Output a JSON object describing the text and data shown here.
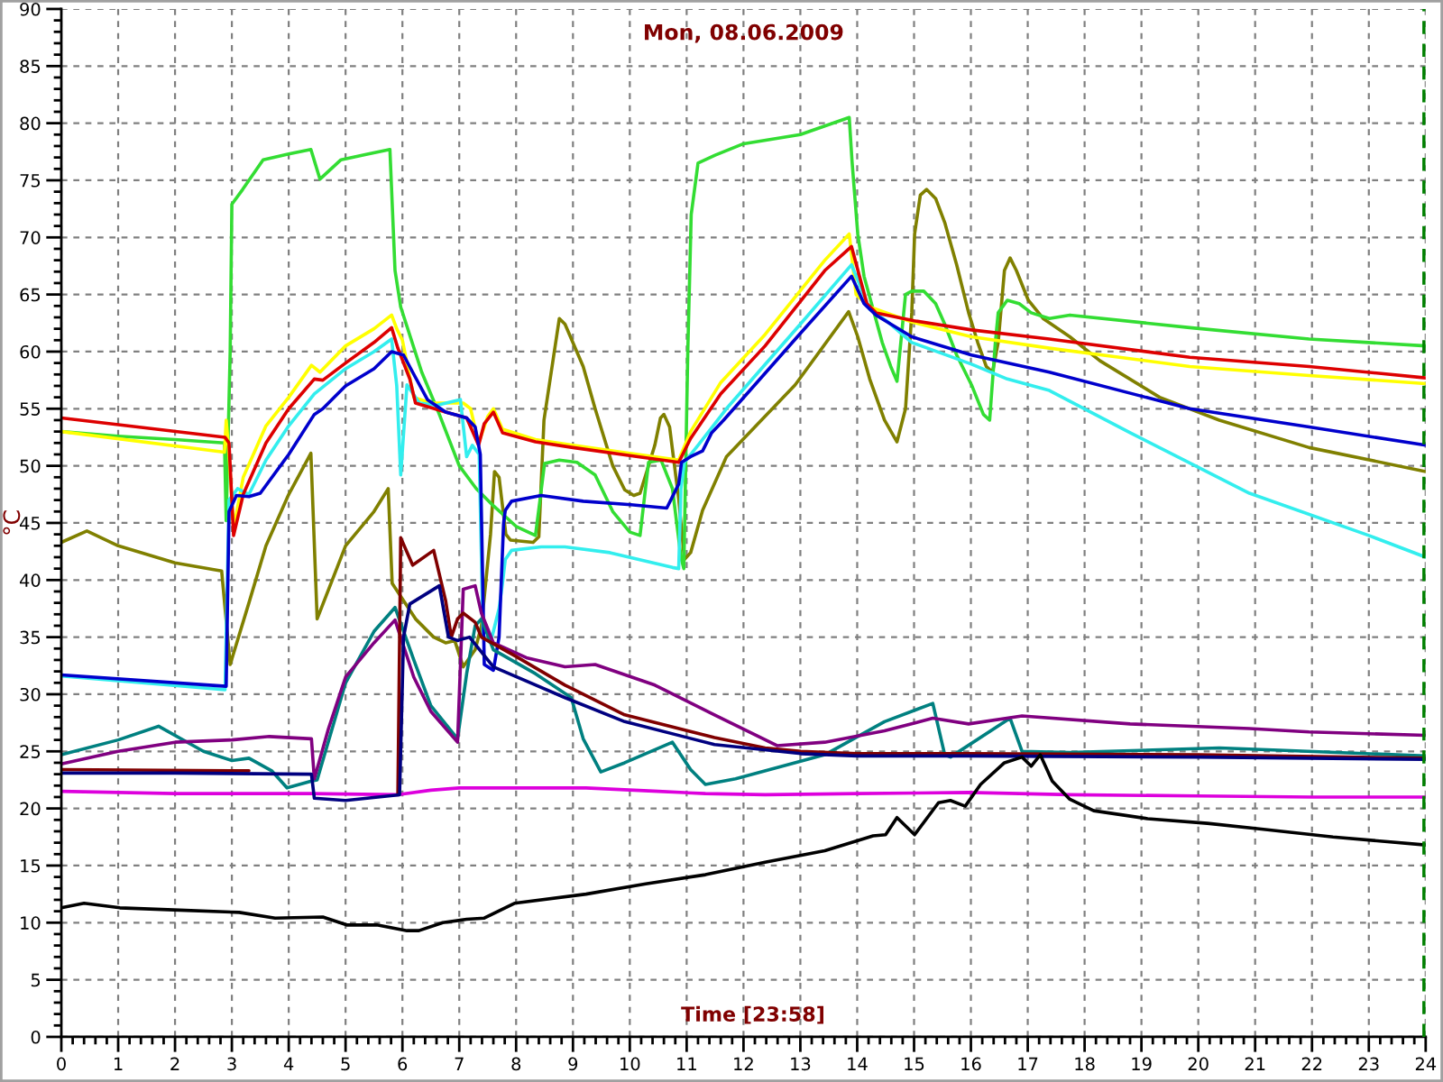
{
  "chart_data": {
    "type": "line",
    "title": "Mon, 08.06.2009",
    "xlabel": "Time [23:58]",
    "ylabel": "°C",
    "xlim": [
      0,
      24
    ],
    "xticks": [
      0,
      1,
      2,
      3,
      4,
      5,
      6,
      7,
      8,
      9,
      10,
      11,
      12,
      13,
      14,
      15,
      16,
      17,
      18,
      19,
      20,
      21,
      22,
      23,
      24
    ],
    "ylim": [
      0,
      90
    ],
    "yticks": [
      0,
      5,
      10,
      15,
      20,
      25,
      30,
      35,
      40,
      45,
      50,
      55,
      60,
      65,
      70,
      75,
      80,
      85,
      90
    ],
    "grid": true,
    "ref_lines": [
      {
        "axis": "x",
        "value": 23.97,
        "color": "#008000",
        "line_style": "dashed"
      }
    ],
    "series": [
      {
        "color": "#808000",
        "x": [
          0,
          0.45,
          1,
          2,
          2.82,
          2.97,
          3.3,
          3.6,
          4.0,
          4.39,
          4.5,
          5.0,
          5.5,
          5.75,
          5.82,
          6.23,
          6.55,
          6.76,
          6.92,
          7.07,
          7.28,
          7.39,
          7.55,
          7.62,
          7.7,
          7.82,
          7.9,
          8.3,
          8.4,
          8.49,
          8.76,
          8.86,
          9.18,
          9.39,
          9.7,
          9.91,
          10.07,
          10.18,
          10.28,
          10.44,
          10.54,
          10.6,
          10.7,
          10.86,
          10.96,
          11.07,
          11.28,
          11.7,
          12.91,
          13.85,
          14.01,
          14.22,
          14.48,
          14.7,
          14.85,
          14.96,
          15.01,
          15.11,
          15.22,
          15.38,
          15.54,
          15.75,
          15.96,
          16.12,
          16.27,
          16.38,
          16.48,
          16.59,
          16.69,
          16.8,
          17.01,
          17.27,
          17.74,
          18.27,
          19.32,
          20.37,
          21.95,
          24
        ],
        "values": [
          43.3,
          44.3,
          43,
          41.5,
          40.8,
          32.6,
          38,
          43,
          47.5,
          51.1,
          36.6,
          43,
          46,
          48,
          39.7,
          36.6,
          35,
          34.5,
          34.7,
          32.4,
          33.9,
          36,
          44,
          49.5,
          49,
          44,
          43.5,
          43.3,
          43.8,
          54,
          62.9,
          62.4,
          58.7,
          55,
          50,
          47.9,
          47.4,
          47.6,
          49.2,
          51.8,
          54.2,
          54.5,
          53.4,
          47.1,
          41.8,
          42.4,
          46.1,
          50.8,
          57.1,
          63.5,
          61.3,
          57.6,
          54,
          52.1,
          55,
          63.4,
          70.3,
          73.7,
          74.2,
          73.4,
          71.3,
          67.6,
          63.4,
          60.8,
          58.7,
          58.2,
          60.8,
          67.1,
          68.2,
          67.1,
          64.5,
          62.9,
          61.3,
          59.2,
          56,
          54,
          51.6,
          49.5
        ]
      },
      {
        "color": "#33dd33",
        "x": [
          0,
          1,
          2,
          2.87,
          2.9,
          2.97,
          3.0,
          3.19,
          3.55,
          4.0,
          4.39,
          4.55,
          4.92,
          5.4,
          5.78,
          5.87,
          5.97,
          6.34,
          6.65,
          7.0,
          7.3,
          7.6,
          8.0,
          8.34,
          8.42,
          8.5,
          8.76,
          9.07,
          9.39,
          9.7,
          10.0,
          10.18,
          10.28,
          10.33,
          10.55,
          10.75,
          10.9,
          10.95,
          11.02,
          11.08,
          11.2,
          11.5,
          12,
          13,
          13.86,
          13.91,
          14.01,
          14.12,
          14.44,
          14.59,
          14.7,
          14.85,
          14.96,
          15.17,
          15.38,
          15.54,
          15.75,
          16.01,
          16.22,
          16.33,
          16.43,
          16.48,
          16.64,
          16.85,
          17.06,
          17.38,
          17.74,
          19.85,
          21.95,
          24
        ],
        "values": [
          53,
          52.6,
          52.3,
          52,
          45.2,
          60,
          72.9,
          74.2,
          76.8,
          77.3,
          77.7,
          75.1,
          76.8,
          77.3,
          77.7,
          67.1,
          63.9,
          58.2,
          54.5,
          50,
          48,
          46.5,
          44.7,
          43.9,
          47,
          50.2,
          50.5,
          50.3,
          49.2,
          46,
          44.2,
          43.9,
          48.2,
          50.3,
          50.5,
          48,
          42,
          41,
          60,
          72,
          76.5,
          77.2,
          78.2,
          79,
          80.5,
          76.6,
          70.3,
          66.6,
          60.8,
          58.7,
          57.4,
          65,
          65.3,
          65.3,
          64.2,
          62.4,
          59.7,
          57.1,
          54.5,
          54,
          60.8,
          63.4,
          64.5,
          64.2,
          63.4,
          62.9,
          63.2,
          62.1,
          61.1,
          60.5
        ]
      },
      {
        "color": "#ffff00",
        "x": [
          0,
          2.87,
          2.9,
          2.95,
          3.03,
          3.2,
          3.6,
          4.0,
          4.4,
          4.55,
          5.0,
          5.5,
          5.81,
          5.9,
          6.0,
          6.2,
          6.5,
          7.07,
          7.2,
          7.34,
          7.5,
          7.6,
          7.76,
          8.34,
          9,
          10,
          10.86,
          11.07,
          11.6,
          12.38,
          13.43,
          13.86,
          13.98,
          14.22,
          14.96,
          16.01,
          17.38,
          19.85,
          21.95,
          24
        ],
        "values": [
          53,
          51.2,
          54,
          51,
          44.5,
          49,
          53.5,
          56,
          58.8,
          58.2,
          60.5,
          62,
          63.2,
          62,
          61,
          56,
          55.5,
          55.5,
          55,
          52,
          54.3,
          55,
          53.2,
          52.3,
          51.8,
          51.1,
          50.5,
          53,
          57.3,
          61.5,
          68,
          70.3,
          65,
          63.9,
          62.6,
          61.3,
          60.3,
          58.7,
          57.9,
          57.2
        ]
      },
      {
        "color": "#33eeee",
        "x": [
          0,
          2.88,
          2.95,
          3.1,
          3.3,
          3.6,
          4.0,
          4.45,
          5.0,
          5.5,
          5.81,
          5.9,
          5.97,
          6.08,
          6.3,
          6.6,
          7.02,
          7.13,
          7.23,
          7.35,
          7.42,
          7.55,
          7.7,
          7.76,
          7.81,
          7.92,
          8.44,
          8.86,
          9.65,
          10.75,
          10.86,
          10.9,
          10.96,
          11.2,
          11.7,
          13,
          13.9,
          14.22,
          14.54,
          14.96,
          16.01,
          16.64,
          17.38,
          18.8,
          20.9,
          23,
          24
        ],
        "values": [
          31.6,
          30.4,
          47,
          48,
          47.5,
          50.5,
          53.5,
          56.3,
          58.5,
          60,
          61.1,
          57,
          49.2,
          57.1,
          55.5,
          55.3,
          55.8,
          50.8,
          51.8,
          51,
          35,
          34.5,
          37.5,
          39.7,
          41.8,
          42.6,
          42.9,
          42.9,
          42.4,
          41.1,
          41,
          48,
          50.3,
          51.8,
          55,
          62.4,
          67.6,
          63.7,
          62.6,
          60.8,
          58.9,
          57.6,
          56.6,
          52.9,
          47.6,
          43.9,
          42
        ]
      },
      {
        "color": "#dd0000",
        "x": [
          0,
          2.88,
          2.95,
          3.03,
          3.2,
          3.6,
          4.0,
          4.45,
          4.6,
          5.0,
          5.5,
          5.81,
          5.92,
          6.13,
          6.23,
          6.76,
          7.13,
          7.34,
          7.44,
          7.6,
          7.76,
          8.34,
          9,
          10,
          10.86,
          11.07,
          11.6,
          12.38,
          13.43,
          13.9,
          14.17,
          14.33,
          15,
          16.01,
          17.38,
          19.85,
          21.95,
          24
        ],
        "values": [
          54.2,
          52.5,
          52,
          43.9,
          47.5,
          52,
          55,
          57.6,
          57.5,
          59,
          60.8,
          62.1,
          60.3,
          57.6,
          55.5,
          54.7,
          54.2,
          51.8,
          53.7,
          54.7,
          52.9,
          52.1,
          51.6,
          50.9,
          50.3,
          52.4,
          56.3,
          60.5,
          67.1,
          69.2,
          64.2,
          63.4,
          62.7,
          61.9,
          61.1,
          59.5,
          58.7,
          57.7
        ]
      },
      {
        "color": "#0000cc",
        "x": [
          0,
          2.9,
          2.95,
          3.08,
          3.3,
          3.5,
          4.0,
          4.45,
          4.6,
          5.0,
          5.5,
          5.81,
          6.02,
          6.18,
          6.44,
          6.76,
          7.13,
          7.28,
          7.37,
          7.44,
          7.6,
          7.7,
          7.78,
          7.81,
          7.92,
          8.44,
          9.18,
          10.02,
          10.65,
          10.86,
          10.91,
          11.07,
          11.28,
          11.44,
          11.65,
          13,
          13.9,
          14.12,
          14.33,
          14.96,
          16.01,
          17.38,
          19.85,
          21.95,
          24
        ],
        "values": [
          31.7,
          30.7,
          46,
          47.4,
          47.3,
          47.6,
          51,
          54.5,
          55,
          57,
          58.5,
          60,
          59.7,
          58.2,
          55.8,
          54.7,
          54.2,
          53.4,
          51,
          32.6,
          32.1,
          35,
          45,
          46.1,
          46.9,
          47.4,
          46.9,
          46.6,
          46.3,
          48.4,
          50.3,
          50.8,
          51.3,
          52.9,
          54,
          61.6,
          66.6,
          64.2,
          63.2,
          61.3,
          59.7,
          58.2,
          55,
          53.4,
          51.8
        ]
      },
      {
        "color": "#dd00dd",
        "x": [
          0,
          2,
          4.4,
          5.9,
          6.5,
          7.0,
          9.23,
          10.5,
          11.33,
          12.38,
          14,
          15.96,
          17.74,
          20,
          22,
          24
        ],
        "values": [
          21.5,
          21.3,
          21.3,
          21.2,
          21.6,
          21.8,
          21.8,
          21.5,
          21.3,
          21.2,
          21.3,
          21.4,
          21.2,
          21.1,
          21,
          21
        ]
      },
      {
        "color": "#008080",
        "x": [
          0,
          1,
          1.71,
          2.5,
          3.0,
          3.3,
          3.7,
          3.97,
          4.4,
          4.5,
          5.0,
          5.5,
          5.87,
          6.2,
          6.5,
          6.97,
          7.13,
          7.28,
          7.39,
          7.6,
          8.34,
          8.97,
          9.18,
          9.49,
          9.91,
          10.75,
          11.07,
          11.33,
          11.86,
          13.43,
          14.48,
          15.33,
          15.54,
          15.64,
          16.69,
          16.9,
          17.74,
          20.37,
          21.42,
          24
        ],
        "values": [
          24.7,
          26,
          27.2,
          25,
          24.2,
          24.4,
          23.3,
          21.8,
          22.4,
          22.5,
          31,
          35.5,
          37.6,
          33,
          29,
          26.1,
          31.8,
          36,
          36.6,
          33.9,
          31.8,
          29.7,
          26.1,
          23.2,
          24,
          25.8,
          23.4,
          22.1,
          22.6,
          24.7,
          27.6,
          29.2,
          24.7,
          24.5,
          27.9,
          25,
          24.9,
          25.3,
          25.1,
          24.6
        ]
      },
      {
        "color": "#800080",
        "x": [
          0,
          1,
          2,
          3,
          3.66,
          4.4,
          4.45,
          4.7,
          5.0,
          5.5,
          5.87,
          6.2,
          6.5,
          6.97,
          7.07,
          7.28,
          7.39,
          7.6,
          8.18,
          8.86,
          9.39,
          10.44,
          11.49,
          12.59,
          13.43,
          14.48,
          15.33,
          15.96,
          16.9,
          18.8,
          20.9,
          21.95,
          24
        ],
        "values": [
          23.9,
          25,
          25.8,
          26,
          26.3,
          26.1,
          22.6,
          27,
          31.5,
          34.5,
          36.5,
          31.5,
          28.5,
          25.8,
          39.2,
          39.5,
          37.1,
          34.5,
          33.2,
          32.4,
          32.6,
          30.8,
          28.2,
          25.5,
          25.8,
          26.8,
          27.9,
          27.4,
          28.1,
          27.4,
          27,
          26.7,
          26.4
        ]
      },
      {
        "color": "#800000",
        "x": [
          0,
          3.3,
          3.35,
          5.92,
          5.97,
          6.18,
          6.55,
          6.76,
          6.86,
          6.97,
          7.07,
          7.28,
          7.39,
          8.0,
          8.86,
          9.91,
          11.49,
          12.38,
          13.01,
          14,
          16,
          20,
          24
        ],
        "values": [
          23.4,
          23.3,
          null,
          21.2,
          43.7,
          41.3,
          42.6,
          38.2,
          35,
          36.6,
          37.1,
          36.3,
          35,
          33.3,
          30.8,
          28.2,
          26.2,
          25.3,
          25,
          24.8,
          24.8,
          24.7,
          24.4
        ]
      },
      {
        "color": "#000080",
        "x": [
          0,
          2,
          4.4,
          4.45,
          5.0,
          5.95,
          6.02,
          6.13,
          6.65,
          6.81,
          6.97,
          7.18,
          7.39,
          7.6,
          8.86,
          9.91,
          11.49,
          13.01,
          14,
          16,
          20,
          24
        ],
        "values": [
          23.1,
          23.1,
          23,
          20.9,
          20.7,
          21.2,
          35,
          37.9,
          39.5,
          35,
          34.7,
          35,
          33.7,
          32.4,
          29.7,
          27.6,
          25.6,
          24.8,
          24.6,
          24.6,
          24.5,
          24.3
        ]
      },
      {
        "color": "#000000",
        "x": [
          0,
          0.4,
          1.03,
          2.08,
          3.13,
          3.76,
          4.6,
          5.02,
          5.55,
          6.08,
          6.29,
          6.71,
          7.13,
          7.44,
          7.97,
          9.23,
          10.28,
          11.33,
          12.38,
          13.43,
          14.28,
          14.5,
          14.7,
          15.01,
          15.43,
          15.64,
          15.9,
          16.17,
          16.59,
          16.9,
          17.06,
          17.22,
          17.43,
          17.74,
          18.16,
          19.11,
          20.16,
          21.11,
          22.37,
          24
        ],
        "values": [
          11.3,
          11.7,
          11.3,
          11.1,
          10.9,
          10.4,
          10.5,
          9.8,
          9.8,
          9.3,
          9.3,
          10,
          10.3,
          10.4,
          11.7,
          12.5,
          13.4,
          14.2,
          15.3,
          16.3,
          17.6,
          17.7,
          19.2,
          17.7,
          20.5,
          20.7,
          20.2,
          22.1,
          24,
          24.5,
          23.7,
          24.7,
          22.4,
          20.8,
          19.8,
          19.1,
          18.7,
          18.2,
          17.5,
          16.8
        ]
      }
    ]
  }
}
